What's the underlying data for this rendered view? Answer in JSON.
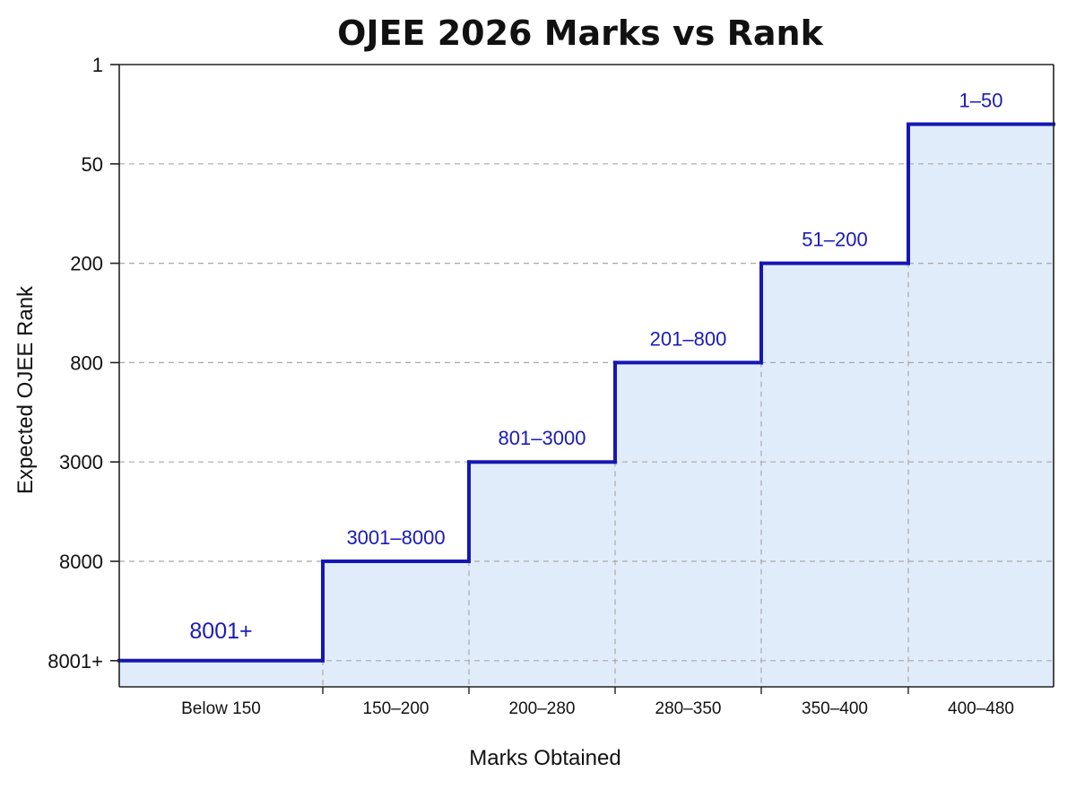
{
  "chart_data": {
    "type": "line",
    "subtype": "step",
    "title": "OJEE 2026 Marks vs Rank",
    "xlabel": "Marks Obtained",
    "ylabel": "Expected OJEE Rank",
    "categories": [
      "Below 150",
      "150–200",
      "200–280",
      "280–350",
      "350–400",
      "400–480"
    ],
    "y_ticks": [
      "1",
      "50",
      "200",
      "800",
      "3000",
      "8000",
      "8001+"
    ],
    "y_axis": "ordinal rank bands, best rank (1) at top",
    "series": [
      {
        "rank_band_labels": [
          "8001+",
          "3001–8000",
          "801–3000",
          "201–800",
          "51–200",
          "1–50"
        ],
        "y_position_between_ticks": [
          6,
          5,
          4,
          3,
          2,
          0.6
        ]
      }
    ],
    "grid": "horizontal dashed at y ticks, vertical dashed at category boundaries",
    "legend": "none",
    "colors": {
      "line": "#1616b4",
      "fill": "#e1ecfb",
      "label": "#1a1ab8",
      "grid": "#a8a8a8"
    }
  }
}
